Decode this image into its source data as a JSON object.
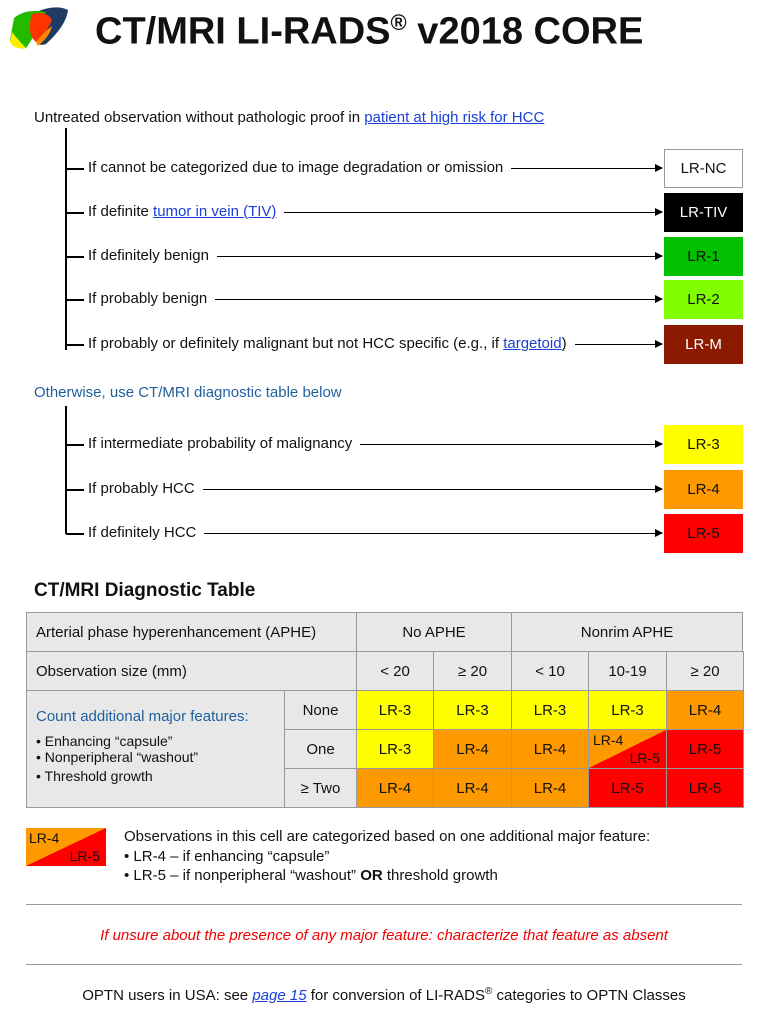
{
  "title": {
    "main": "CT/MRI LI-RADS",
    "reg": "®",
    "version": " v2018 CORE"
  },
  "intro": {
    "text": "Untreated observation without pathologic proof in ",
    "link": "patient at high risk for HCC"
  },
  "group1": [
    {
      "pre": "If cannot be categorized due to image degradation or omission",
      "link": "",
      "post": "",
      "cat": "LR-NC",
      "color": "#ffffff"
    },
    {
      "pre": "If definite ",
      "link": "tumor in vein (TIV)",
      "post": "",
      "cat": "LR-TIV",
      "color": "#000000"
    },
    {
      "pre": "If definitely benign",
      "link": "",
      "post": "",
      "cat": "LR-1",
      "color": "#00c000"
    },
    {
      "pre": "If probably benign",
      "link": "",
      "post": "",
      "cat": "LR-2",
      "color": "#80ff00"
    },
    {
      "pre": "If probably or definitely malignant but not HCC specific (e.g., if ",
      "link": "targetoid",
      "post": ")",
      "cat": "LR-M",
      "color": "#8b1a00"
    }
  ],
  "otherwise": "Otherwise, use CT/MRI diagnostic table below",
  "group2": [
    {
      "pre": "If intermediate probability of malignancy",
      "cat": "LR-3",
      "color": "#ffff00"
    },
    {
      "pre": "If probably HCC",
      "cat": "LR-4",
      "color": "#ff9900"
    },
    {
      "pre": "If definitely HCC",
      "cat": "LR-5",
      "color": "#ff0000"
    }
  ],
  "table": {
    "heading": "CT/MRI Diagnostic Table",
    "aphe_label": "Arterial phase hyperenhancement (APHE)",
    "no_aphe": "No APHE",
    "nonrim_aphe": "Nonrim APHE",
    "size_label": "Observation size (mm)",
    "sizes": [
      "< 20",
      "≥ 20",
      "< 10",
      "10-19",
      "≥ 20"
    ],
    "count_label": "Count additional major features:",
    "features": [
      "• Enhancing “capsule”",
      "• Nonperipheral “washout”",
      "• Threshold growth"
    ],
    "rows": [
      {
        "label": "None",
        "cells": [
          "LR-3",
          "LR-3",
          "LR-3",
          "LR-3",
          "LR-4"
        ]
      },
      {
        "label": "One",
        "cells": [
          "LR-3",
          "LR-4",
          "LR-4",
          "LR-4/LR-5",
          "LR-5"
        ]
      },
      {
        "label": "≥ Two",
        "cells": [
          "LR-4",
          "LR-4",
          "LR-4",
          "LR-5",
          "LR-5"
        ]
      }
    ],
    "split_top": "LR-4",
    "split_bottom": "LR-5"
  },
  "legend": {
    "text": "Observations in this cell are categorized based on one additional major feature:",
    "b1": "•  LR-4 – if enhancing “capsule”",
    "b2_pre": "•  LR-5 – if nonperipheral “washout” ",
    "b2_bold": "OR",
    "b2_post": " threshold growth"
  },
  "unsure": "If unsure about the presence of any major feature: characterize that feature as absent",
  "footer": {
    "pre": "OPTN users in USA: see ",
    "link": "page 15",
    "mid": " for conversion of LI-RADS",
    "reg": "®",
    "post": " categories to OPTN Classes"
  }
}
